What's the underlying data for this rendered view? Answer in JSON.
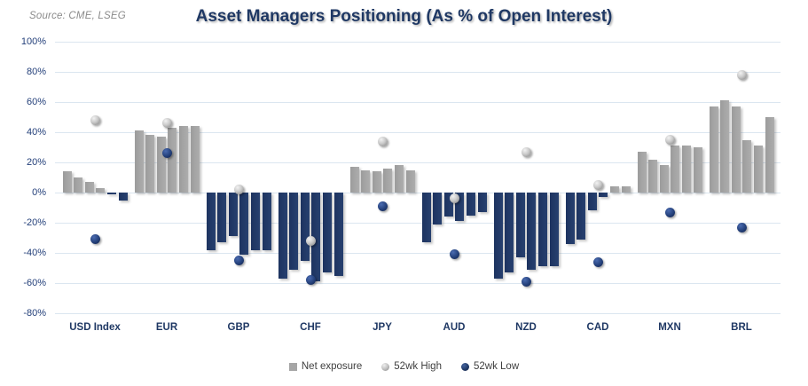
{
  "header": {
    "source": "Source: CME, LSEG",
    "title": "Asset Managers Positioning (As % of Open Interest)"
  },
  "legend": [
    {
      "label": "Net exposure",
      "swatch": "gray-square",
      "color": "#a6a6a6"
    },
    {
      "label": "52wk High",
      "swatch": "gray-sphere",
      "color": "#bfbfbf"
    },
    {
      "label": "52wk Low",
      "swatch": "navy-sphere",
      "color": "#1f3864"
    }
  ],
  "chart_data": {
    "type": "bar",
    "title": "Asset Managers Positioning (As % of Open Interest)",
    "source": "Source: CME, LSEG",
    "categories": [
      "USD Index",
      "EUR",
      "GBP",
      "CHF",
      "JPY",
      "AUD",
      "NZD",
      "CAD",
      "MXN",
      "BRL"
    ],
    "bars_per_category": 6,
    "series": [
      {
        "name": "Net exposure",
        "type": "bar",
        "values_by_category": [
          [
            14,
            10,
            7,
            3,
            -1,
            -5
          ],
          [
            41,
            38,
            37,
            43,
            44,
            44
          ],
          [
            -38,
            -33,
            -29,
            -41,
            -38,
            -38
          ],
          [
            -57,
            -51,
            -45,
            -59,
            -53,
            -55
          ],
          [
            17,
            15,
            14,
            16,
            18,
            15
          ],
          [
            -33,
            -21,
            -16,
            -19,
            -15,
            -13
          ],
          [
            -57,
            -53,
            -43,
            -51,
            -49,
            -49
          ],
          [
            -34,
            -31,
            -12,
            -3,
            4,
            4
          ],
          [
            27,
            22,
            18,
            31,
            31,
            30
          ],
          [
            57,
            61,
            57,
            35,
            31,
            50
          ]
        ]
      },
      {
        "name": "52wk High",
        "type": "scatter",
        "values": [
          48,
          46,
          2,
          -32,
          34,
          -4,
          27,
          5,
          35,
          78
        ]
      },
      {
        "name": "52wk Low",
        "type": "scatter",
        "values": [
          -31,
          26,
          -45,
          -58,
          -9,
          -41,
          -59,
          -46,
          -13,
          -23
        ]
      }
    ],
    "ylabel": "",
    "xlabel": "",
    "ylim": [
      -80,
      100
    ],
    "ytick_step": 20,
    "ytick_labels": [
      "100%",
      "80%",
      "60%",
      "40%",
      "20%",
      "0%",
      "-20%",
      "-40%",
      "-60%",
      "-80%"
    ],
    "grid": true,
    "legend_position": "bottom",
    "colors": {
      "positive_bar": "#a6a6a6",
      "negative_bar": "#1f3864",
      "high_marker": "#bfbfbf",
      "low_marker": "#1f3864",
      "gridline": "#dbe6f0",
      "axis_text": "#1f3864",
      "title_text": "#1f3864",
      "legend_text": "#404040",
      "source_text": "#8a8a8a"
    }
  }
}
